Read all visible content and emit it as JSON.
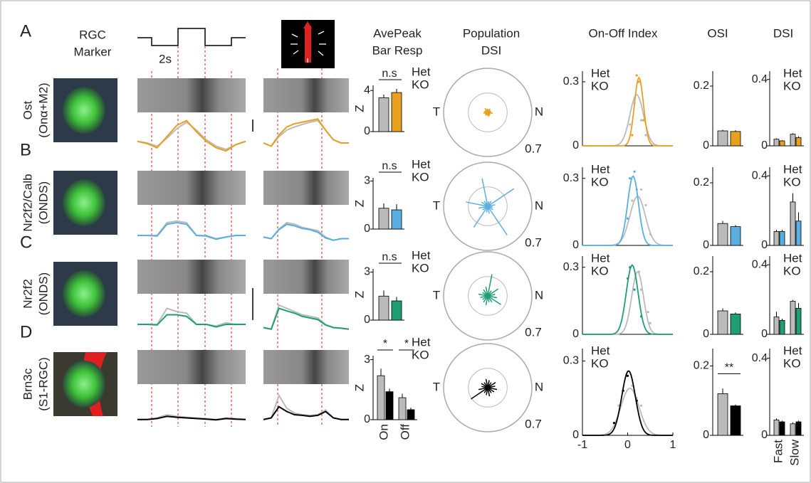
{
  "headers": {
    "marker": [
      "RGC",
      "Marker"
    ],
    "avepeak": [
      "AvePeak",
      "Bar Resp"
    ],
    "population": [
      "Population",
      "DSI"
    ],
    "onoff": "On-Off Index",
    "osi": "OSI",
    "dsi": "DSI"
  },
  "time_bar": "2s",
  "legend": [
    "Het",
    "KO"
  ],
  "z_label": "Z",
  "polar": {
    "left": "T",
    "right": "N",
    "outer": 0.7
  },
  "onoff_xlim": [
    -1,
    1
  ],
  "onoff_xticks": [
    -1,
    0,
    1
  ],
  "avepeak_categories": [
    "On",
    "Off"
  ],
  "dsi_categories": [
    "Fast",
    "Slow"
  ],
  "panels": [
    {
      "letter": "A",
      "label": [
        "Ost",
        "(Onα+M2)"
      ],
      "color": "#e8a020",
      "trace1": {
        "het": [
          0.25,
          0.2,
          0.1,
          0.35,
          0.65,
          0.85,
          0.6,
          0.3,
          0.1,
          0.0,
          0.15,
          0.25
        ],
        "ko": [
          0.25,
          0.18,
          0.05,
          0.4,
          0.75,
          0.9,
          0.55,
          0.25,
          0.05,
          -0.05,
          0.15,
          0.25
        ]
      },
      "trace2": {
        "het": [
          0.2,
          0.1,
          0.4,
          0.6,
          0.7,
          0.78,
          0.85,
          0.9,
          0.6,
          0.3,
          0.2,
          0.2
        ],
        "ko": [
          0.2,
          0.1,
          0.45,
          0.7,
          0.8,
          0.85,
          0.9,
          0.95,
          0.6,
          0.3,
          0.2,
          0.2
        ]
      },
      "avepeak": {
        "ylim": [
          0,
          4.5
        ],
        "yticks": [
          0,
          4
        ],
        "values": [
          3.3,
          3.8
        ],
        "errors": [
          0.3,
          0.35
        ],
        "sig": [
          "n.s"
        ]
      },
      "dsi_vectors": [
        0.06,
        0.05,
        0.07,
        0.05,
        0.06,
        0.08,
        0.05,
        0.06,
        0.07,
        0.05,
        0.06,
        0.05,
        0.07,
        0.06,
        0.05,
        0.08
      ],
      "onoff": {
        "ylim": [
          0,
          0.35
        ],
        "yticks": [
          0,
          0.3
        ],
        "fit": {
          "het": [
            0.24,
            0.2,
            0.15
          ],
          "ko": [
            0.32,
            0.25,
            0.1
          ]
        },
        "points": {
          "het": [
            [
              0.05,
              0.1
            ],
            [
              0.15,
              0.2
            ],
            [
              0.3,
              0.12
            ],
            [
              0.4,
              0.05
            ]
          ],
          "ko": [
            [
              0.2,
              0.33
            ],
            [
              0.25,
              0.3
            ],
            [
              0.35,
              0.12
            ],
            [
              0.1,
              0.05
            ]
          ]
        }
      },
      "osi": {
        "ylim": [
          0,
          0.25
        ],
        "yticks": [
          0,
          0.2
        ],
        "values": [
          0.05,
          0.048
        ],
        "errors": [
          0.004,
          0.004
        ]
      },
      "dsi": {
        "ylim": [
          0,
          0.45
        ],
        "yticks": [
          0,
          0.4
        ],
        "values": [
          0.04,
          0.03,
          0.07,
          0.05
        ],
        "errors": [
          0.005,
          0.005,
          0.006,
          0.008
        ]
      }
    },
    {
      "letter": "B",
      "label": [
        "Nr2f2/Calb",
        "(ONDS)"
      ],
      "color": "#5aaee0",
      "trace1": {
        "het": [
          0.2,
          0.2,
          0.2,
          0.6,
          0.65,
          0.6,
          0.2,
          0.2,
          0.1,
          0.15,
          0.2,
          0.2
        ],
        "ko": [
          0.2,
          0.2,
          0.18,
          0.55,
          0.6,
          0.55,
          0.2,
          0.18,
          0.08,
          0.15,
          0.2,
          0.2
        ]
      },
      "trace2": {
        "het": [
          0.15,
          0.1,
          0.4,
          0.6,
          0.55,
          0.45,
          0.4,
          0.35,
          0.15,
          0.05,
          0.1,
          0.1
        ],
        "ko": [
          0.15,
          0.1,
          0.38,
          0.55,
          0.5,
          0.42,
          0.38,
          0.3,
          0.12,
          0.05,
          0.1,
          0.1
        ]
      },
      "avepeak": {
        "ylim": [
          0,
          3.2
        ],
        "yticks": [
          0,
          3
        ],
        "values": [
          1.3,
          1.2
        ],
        "errors": [
          0.3,
          0.35
        ],
        "sig": [
          "n.s"
        ]
      },
      "dsi_vectors": [
        0.12,
        0.5,
        0.1,
        0.08,
        0.45,
        0.1,
        0.12,
        0.35,
        0.15,
        0.1,
        0.4,
        0.1,
        0.12,
        0.55,
        0.1,
        0.08
      ],
      "onoff": {
        "ylim": [
          0,
          0.35
        ],
        "yticks": [
          0,
          0.3
        ],
        "fit": {
          "het": [
            0.22,
            0.22,
            0.17
          ],
          "ko": [
            0.31,
            0.12,
            0.12
          ]
        },
        "points": {
          "het": [
            [
              0.3,
              0.25
            ],
            [
              0.4,
              0.18
            ],
            [
              0.1,
              0.2
            ],
            [
              0.5,
              0.05
            ]
          ],
          "ko": [
            [
              0.05,
              0.3
            ],
            [
              0.15,
              0.33
            ],
            [
              0.2,
              0.25
            ],
            [
              0.0,
              0.12
            ]
          ]
        }
      },
      "osi": {
        "ylim": [
          0,
          0.25
        ],
        "yticks": [
          0,
          0.2
        ],
        "values": [
          0.07,
          0.06
        ],
        "errors": [
          0.008,
          0.005
        ]
      },
      "dsi": {
        "ylim": [
          0,
          0.45
        ],
        "yticks": [
          0,
          0.4
        ],
        "values": [
          0.08,
          0.08,
          0.25,
          0.14
        ],
        "errors": [
          0.01,
          0.01,
          0.05,
          0.05
        ]
      }
    },
    {
      "letter": "C",
      "label": [
        "Nr2f2",
        "(ONDS)"
      ],
      "color": "#1f9e73",
      "trace1": {
        "het": [
          0.2,
          0.2,
          0.2,
          0.7,
          0.6,
          0.55,
          0.2,
          0.2,
          0.15,
          0.25,
          0.2,
          0.2
        ],
        "ko": [
          0.2,
          0.2,
          0.18,
          0.5,
          0.5,
          0.45,
          0.2,
          0.2,
          0.12,
          0.2,
          0.2,
          0.2
        ]
      },
      "trace2": {
        "het": [
          0.1,
          0.05,
          0.8,
          0.7,
          0.6,
          0.5,
          0.45,
          0.4,
          0.2,
          0.1,
          0.08,
          0.05
        ],
        "ko": [
          0.1,
          0.05,
          0.7,
          0.62,
          0.55,
          0.45,
          0.4,
          0.35,
          0.18,
          0.1,
          0.08,
          0.05
        ]
      },
      "avepeak": {
        "ylim": [
          0,
          3.2
        ],
        "yticks": [
          0,
          3
        ],
        "values": [
          1.5,
          1.2
        ],
        "errors": [
          0.35,
          0.25
        ],
        "sig": [
          "n.s"
        ]
      },
      "dsi_vectors": [
        0.12,
        0.2,
        0.1,
        0.35,
        0.15,
        0.12,
        0.1,
        0.15,
        0.12,
        0.1,
        0.12,
        0.15,
        0.1,
        0.12,
        0.25,
        0.15
      ],
      "onoff": {
        "ylim": [
          0,
          0.35
        ],
        "yticks": [
          0,
          0.3
        ],
        "fit": {
          "het": [
            0.28,
            0.22,
            0.13
          ],
          "ko": [
            0.31,
            0.1,
            0.13
          ]
        },
        "points": {
          "het": [
            [
              0.3,
              0.2
            ],
            [
              0.45,
              0.1
            ],
            [
              0.5,
              0.05
            ],
            [
              0.25,
              0.28
            ]
          ],
          "ko": [
            [
              0.05,
              0.3
            ],
            [
              0.0,
              0.25
            ],
            [
              0.15,
              0.2
            ],
            [
              0.3,
              0.08
            ]
          ]
        }
      },
      "osi": {
        "ylim": [
          0,
          0.25
        ],
        "yticks": [
          0,
          0.2
        ],
        "values": [
          0.075,
          0.065
        ],
        "errors": [
          0.008,
          0.005
        ]
      },
      "dsi": {
        "ylim": [
          0,
          0.45
        ],
        "yticks": [
          0,
          0.4
        ],
        "values": [
          0.1,
          0.08,
          0.19,
          0.15
        ],
        "errors": [
          0.03,
          0.01,
          0.008,
          0.03
        ]
      }
    },
    {
      "letter": "D",
      "label": [
        "Brn3c",
        "(S1-RGC)"
      ],
      "color": "#000000",
      "trace1": {
        "het": [
          0.05,
          0.05,
          0.1,
          0.2,
          0.15,
          0.12,
          0.1,
          0.08,
          0.05,
          0.1,
          0.08,
          0.05
        ],
        "ko": [
          0.05,
          0.05,
          0.08,
          0.15,
          0.12,
          0.1,
          0.08,
          0.06,
          0.04,
          0.08,
          0.06,
          0.05
        ],
        "sparse": true
      },
      "trace2": {
        "het": [
          0.05,
          0.1,
          0.8,
          0.4,
          0.25,
          0.2,
          0.18,
          0.2,
          0.35,
          0.1,
          0.05,
          0.05
        ],
        "ko": [
          0.05,
          0.1,
          0.45,
          0.3,
          0.2,
          0.18,
          0.15,
          0.18,
          0.3,
          0.1,
          0.05,
          0.05
        ]
      },
      "avepeak": {
        "ylim": [
          0,
          3.2
        ],
        "yticks": [
          0,
          3
        ],
        "values": [
          2.2,
          1.4,
          1.1,
          0.5
        ],
        "errors": [
          0.35,
          0.15,
          0.2,
          0.1
        ],
        "sig": [
          "*",
          "*"
        ]
      },
      "dsi_vectors": [
        0.12,
        0.15,
        0.1,
        0.12,
        0.14,
        0.1,
        0.12,
        0.1,
        0.15,
        0.32,
        0.1,
        0.12,
        0.14,
        0.1,
        0.12,
        0.15
      ],
      "onoff": {
        "ylim": [
          0,
          0.35
        ],
        "yticks": [
          0,
          0.3
        ],
        "fit": {
          "het": [
            0.19,
            0.05,
            0.2
          ],
          "ko": [
            0.26,
            0.02,
            0.15
          ]
        },
        "points": {
          "het": [
            [
              -0.2,
              0.12
            ],
            [
              0.1,
              0.2
            ],
            [
              0.3,
              0.12
            ],
            [
              0.2,
              0.15
            ]
          ],
          "ko": [
            [
              -0.1,
              0.18
            ],
            [
              0.0,
              0.24
            ],
            [
              0.2,
              0.14
            ],
            [
              -0.3,
              0.05
            ]
          ]
        }
      },
      "osi": {
        "ylim": [
          0,
          0.25
        ],
        "yticks": [
          0,
          0.2
        ],
        "values": [
          0.12,
          0.085
        ],
        "errors": [
          0.015,
          0.004
        ],
        "sig": [
          "**"
        ]
      },
      "dsi": {
        "ylim": [
          0,
          0.45
        ],
        "yticks": [
          0,
          0.4
        ],
        "values": [
          0.08,
          0.07,
          0.06,
          0.07
        ],
        "errors": [
          0.008,
          0.006,
          0.008,
          0.006
        ]
      }
    }
  ]
}
